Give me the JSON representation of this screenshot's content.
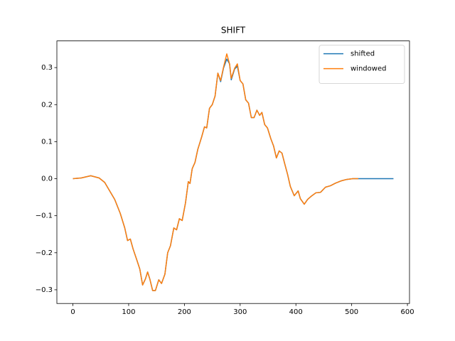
{
  "chart_data": {
    "type": "line",
    "title": "SHIFT",
    "x": [
      0,
      15,
      32,
      47,
      57,
      66,
      75,
      85,
      93,
      98,
      103,
      108,
      115,
      120,
      125,
      130,
      134,
      138,
      143,
      148,
      154,
      159,
      165,
      170,
      175,
      181,
      186,
      191,
      196,
      202,
      207,
      210,
      214,
      219,
      224,
      231,
      236,
      240,
      245,
      250,
      255,
      260,
      265,
      270,
      276,
      281,
      284,
      290,
      295,
      300,
      305,
      310,
      315,
      320,
      325,
      330,
      335,
      339,
      344,
      349,
      355,
      360,
      365,
      370,
      375,
      380,
      385,
      390,
      397,
      404,
      408,
      415,
      421,
      427,
      436,
      444,
      453,
      462,
      471,
      481,
      491,
      502,
      512,
      575
    ],
    "series": [
      {
        "name": "shifted",
        "color": "#1f77b4",
        "values": [
          0,
          0.002,
          0.008,
          0.002,
          -0.01,
          -0.033,
          -0.056,
          -0.094,
          -0.133,
          -0.167,
          -0.163,
          -0.19,
          -0.221,
          -0.244,
          -0.287,
          -0.271,
          -0.252,
          -0.271,
          -0.302,
          -0.302,
          -0.273,
          -0.283,
          -0.258,
          -0.2,
          -0.181,
          -0.133,
          -0.138,
          -0.108,
          -0.113,
          -0.065,
          -0.008,
          -0.013,
          0.027,
          0.044,
          0.079,
          0.113,
          0.14,
          0.137,
          0.19,
          0.2,
          0.223,
          0.285,
          0.262,
          0.298,
          0.323,
          0.31,
          0.267,
          0.296,
          0.304,
          0.265,
          0.256,
          0.213,
          0.204,
          0.165,
          0.165,
          0.185,
          0.171,
          0.179,
          0.146,
          0.137,
          0.108,
          0.088,
          0.056,
          0.075,
          0.069,
          0.04,
          0.012,
          -0.021,
          -0.046,
          -0.033,
          -0.054,
          -0.069,
          -0.056,
          -0.048,
          -0.038,
          -0.037,
          -0.023,
          -0.019,
          -0.012,
          -0.006,
          -0.002,
          0,
          0,
          0
        ]
      },
      {
        "name": "windowed",
        "color": "#ff7f0e",
        "values": [
          0,
          0.002,
          0.008,
          0.002,
          -0.01,
          -0.033,
          -0.056,
          -0.094,
          -0.133,
          -0.167,
          -0.163,
          -0.19,
          -0.221,
          -0.244,
          -0.287,
          -0.271,
          -0.252,
          -0.271,
          -0.302,
          -0.302,
          -0.273,
          -0.283,
          -0.258,
          -0.2,
          -0.181,
          -0.133,
          -0.138,
          -0.108,
          -0.113,
          -0.065,
          -0.008,
          -0.013,
          0.027,
          0.044,
          0.079,
          0.113,
          0.14,
          0.137,
          0.19,
          0.2,
          0.223,
          0.285,
          0.265,
          0.3,
          0.337,
          0.31,
          0.271,
          0.298,
          0.31,
          0.265,
          0.256,
          0.213,
          0.204,
          0.165,
          0.165,
          0.185,
          0.171,
          0.179,
          0.146,
          0.137,
          0.108,
          0.088,
          0.056,
          0.075,
          0.069,
          0.04,
          0.012,
          -0.021,
          -0.046,
          -0.033,
          -0.054,
          -0.069,
          -0.056,
          -0.048,
          -0.038,
          -0.037,
          -0.023,
          -0.019,
          -0.012,
          -0.006,
          -0.002,
          0,
          0,
          null
        ]
      }
    ],
    "xlim": [
      -28.75,
      603.75
    ],
    "xticks": [
      0,
      100,
      200,
      300,
      400,
      500,
      600
    ],
    "ylim": [
      -0.337,
      0.372
    ],
    "yticks": [
      {
        "value": -0.3,
        "label": "−0.3"
      },
      {
        "value": -0.2,
        "label": "−0.2"
      },
      {
        "value": -0.1,
        "label": "−0.1"
      },
      {
        "value": 0,
        "label": "0.0"
      },
      0.1,
      0.2,
      0.3
    ],
    "legend": "upper right"
  }
}
